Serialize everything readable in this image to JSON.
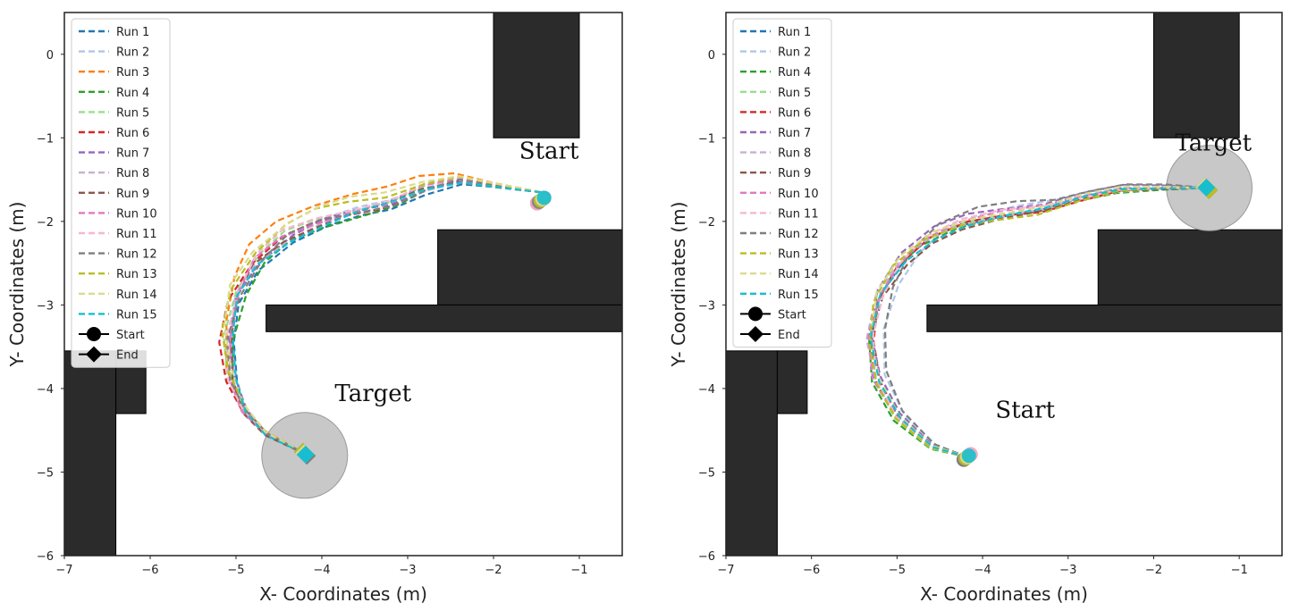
{
  "chart_data": [
    {
      "type": "line",
      "xlabel": "X- Coordinates (m)",
      "ylabel": "Y- Coordinates (m)",
      "xlim": [
        -7,
        -0.5
      ],
      "ylim": [
        -6,
        0.5
      ],
      "xticks": [
        "−7",
        "−6",
        "−5",
        "−4",
        "−3",
        "−2",
        "−1"
      ],
      "yticks": [
        "0",
        "−1",
        "−2",
        "−3",
        "−4",
        "−5",
        "−6"
      ],
      "obstacles": [
        {
          "x0": -7.0,
          "x1": -6.4,
          "y0": -6.0,
          "y1": -3.55
        },
        {
          "x0": -6.4,
          "x1": -6.05,
          "y0": -4.3,
          "y1": -3.55
        },
        {
          "x0": -2.0,
          "x1": -1.0,
          "y0": -1.0,
          "y1": 0.5
        },
        {
          "x0": -2.65,
          "x1": -0.5,
          "y0": -3.0,
          "y1": -2.1
        },
        {
          "x0": -4.65,
          "x1": -0.5,
          "y0": -3.32,
          "y1": -3.0
        }
      ],
      "target_circle": {
        "cx": -4.2,
        "cy": -4.8,
        "r": 0.5
      },
      "annotations": [
        {
          "text": "Start",
          "x": -1.7,
          "y": -1.25
        },
        {
          "text": "Target",
          "x": -3.85,
          "y": -4.15
        }
      ],
      "start": {
        "x": -1.45,
        "y": -1.75
      },
      "end": {
        "x": -4.2,
        "y": -4.78
      },
      "path_base": [
        [
          -1.45,
          -1.65
        ],
        [
          -2.0,
          -1.58
        ],
        [
          -2.4,
          -1.52
        ],
        [
          -2.8,
          -1.62
        ],
        [
          -3.2,
          -1.8
        ],
        [
          -3.6,
          -1.9
        ],
        [
          -4.0,
          -2.02
        ],
        [
          -4.4,
          -2.2
        ],
        [
          -4.75,
          -2.5
        ],
        [
          -4.98,
          -2.9
        ],
        [
          -5.08,
          -3.4
        ],
        [
          -5.05,
          -3.9
        ],
        [
          -4.9,
          -4.28
        ],
        [
          -4.65,
          -4.55
        ],
        [
          -4.2,
          -4.78
        ]
      ],
      "series": [
        {
          "name": "Run 1",
          "color": "#1f77b4",
          "dy": -0.06,
          "dx": 0.05
        },
        {
          "name": "Run 2",
          "color": "#aec7e8",
          "dy": 0.04,
          "dx": -0.02
        },
        {
          "name": "Run 3",
          "color": "#ff7f0e",
          "dy": 0.24,
          "dx": -0.08
        },
        {
          "name": "Run 4",
          "color": "#2ca02c",
          "dy": -0.02,
          "dx": 0.06
        },
        {
          "name": "Run 5",
          "color": "#98df8a",
          "dy": 0.06,
          "dx": -0.04
        },
        {
          "name": "Run 6",
          "color": "#d62728",
          "dy": -0.02,
          "dx": -0.1
        },
        {
          "name": "Run 7",
          "color": "#9467bd",
          "dy": 0.02,
          "dx": 0.02
        },
        {
          "name": "Run 8",
          "color": "#c5b0d5",
          "dy": 0.0,
          "dx": 0.0
        },
        {
          "name": "Run 9",
          "color": "#8c564b",
          "dy": 0.0,
          "dx": -0.01
        },
        {
          "name": "Run 10",
          "color": "#e377c2",
          "dy": 0.04,
          "dx": -0.02
        },
        {
          "name": "Run 11",
          "color": "#f7b6d2",
          "dy": 0.08,
          "dx": -0.03
        },
        {
          "name": "Run 12",
          "color": "#7f7f7f",
          "dy": 0.02,
          "dx": 0.01
        },
        {
          "name": "Run 13",
          "color": "#bcbd22",
          "dy": 0.14,
          "dx": -0.06
        },
        {
          "name": "Run 14",
          "color": "#dbdb8d",
          "dy": 0.18,
          "dx": -0.05
        },
        {
          "name": "Run 15",
          "color": "#17becf",
          "dy": 0.0,
          "dx": 0.03
        }
      ],
      "legend_markers": [
        {
          "label": "Start",
          "shape": "circle"
        },
        {
          "label": "End",
          "shape": "diamond"
        }
      ]
    },
    {
      "type": "line",
      "xlabel": "X- Coordinates (m)",
      "ylabel": "Y- Coordinates (m)",
      "xlim": [
        -7,
        -0.5
      ],
      "ylim": [
        -6,
        0.5
      ],
      "xticks": [
        "−7",
        "−6",
        "−5",
        "−4",
        "−3",
        "−2",
        "−1"
      ],
      "yticks": [
        "0",
        "−1",
        "−2",
        "−3",
        "−4",
        "−5",
        "−6"
      ],
      "obstacles": [
        {
          "x0": -7.0,
          "x1": -6.4,
          "y0": -6.0,
          "y1": -3.55
        },
        {
          "x0": -6.4,
          "x1": -6.05,
          "y0": -4.3,
          "y1": -3.55
        },
        {
          "x0": -2.0,
          "x1": -1.0,
          "y0": -1.0,
          "y1": 0.5
        },
        {
          "x0": -2.65,
          "x1": -0.5,
          "y0": -3.0,
          "y1": -2.1
        },
        {
          "x0": -4.65,
          "x1": -0.5,
          "y0": -3.32,
          "y1": -3.0
        }
      ],
      "target_circle": {
        "cx": -1.35,
        "cy": -1.6,
        "r": 0.5
      },
      "annotations": [
        {
          "text": "Target",
          "x": -1.75,
          "y": -1.15
        },
        {
          "text": "Start",
          "x": -3.85,
          "y": -4.35
        }
      ],
      "start": {
        "x": -4.18,
        "y": -4.82
      },
      "end": {
        "x": -1.38,
        "y": -1.6
      },
      "path_base": [
        [
          -4.18,
          -4.82
        ],
        [
          -4.6,
          -4.7
        ],
        [
          -5.0,
          -4.35
        ],
        [
          -5.25,
          -3.9
        ],
        [
          -5.32,
          -3.4
        ],
        [
          -5.22,
          -2.9
        ],
        [
          -4.98,
          -2.5
        ],
        [
          -4.65,
          -2.2
        ],
        [
          -4.25,
          -2.02
        ],
        [
          -3.8,
          -1.92
        ],
        [
          -3.3,
          -1.85
        ],
        [
          -2.85,
          -1.72
        ],
        [
          -2.4,
          -1.62
        ],
        [
          -1.9,
          -1.6
        ],
        [
          -1.38,
          -1.6
        ]
      ],
      "series": [
        {
          "name": "Run 1",
          "color": "#1f77b4",
          "dy": 0.0,
          "dx": 0.02
        },
        {
          "name": "Run 2",
          "color": "#aec7e8",
          "dy": 0.12,
          "dx": 0.22
        },
        {
          "name": "Run 4",
          "color": "#2ca02c",
          "dy": -0.06,
          "dx": -0.04
        },
        {
          "name": "Run 5",
          "color": "#98df8a",
          "dy": -0.03,
          "dx": -0.02
        },
        {
          "name": "Run 6",
          "color": "#d62728",
          "dy": -0.02,
          "dx": 0.03
        },
        {
          "name": "Run 7",
          "color": "#9467bd",
          "dy": 0.1,
          "dx": 0.04
        },
        {
          "name": "Run 8",
          "color": "#c5b0d5",
          "dy": 0.0,
          "dx": 0.0
        },
        {
          "name": "Run 9",
          "color": "#8c564b",
          "dy": -0.04,
          "dx": 0.05
        },
        {
          "name": "Run 10",
          "color": "#e377c2",
          "dy": 0.02,
          "dx": -0.01
        },
        {
          "name": "Run 11",
          "color": "#f7b6d2",
          "dy": 0.03,
          "dx": 0.02
        },
        {
          "name": "Run 12",
          "color": "#7f7f7f",
          "dy": 0.16,
          "dx": 0.18
        },
        {
          "name": "Run 13",
          "color": "#bcbd22",
          "dy": -0.05,
          "dx": -0.03
        },
        {
          "name": "Run 14",
          "color": "#dbdb8d",
          "dy": 0.05,
          "dx": 0.03
        },
        {
          "name": "Run 15",
          "color": "#17becf",
          "dy": 0.0,
          "dx": 0.06
        }
      ],
      "legend_markers": [
        {
          "label": "Start",
          "shape": "circle"
        },
        {
          "label": "End",
          "shape": "diamond"
        }
      ]
    }
  ]
}
